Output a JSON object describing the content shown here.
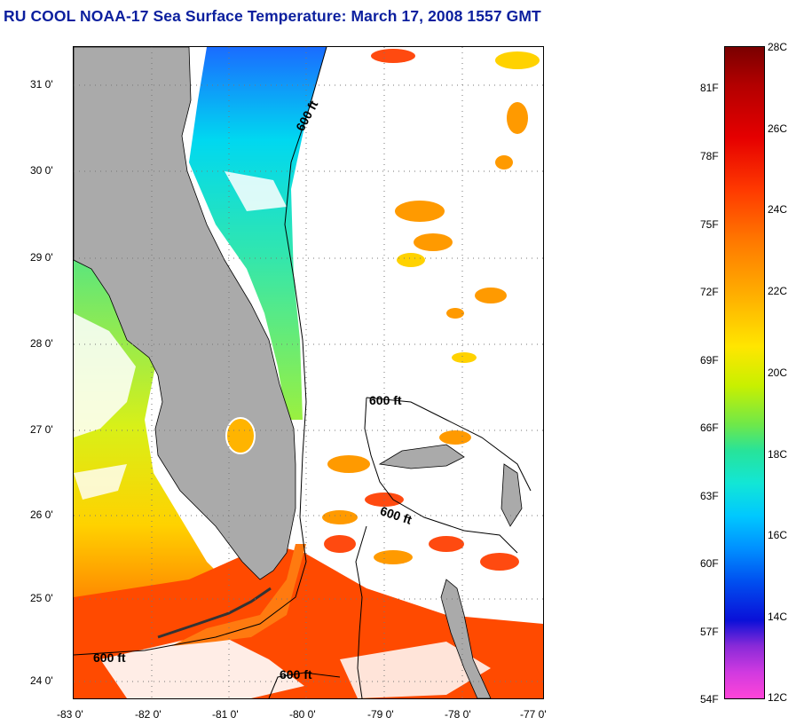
{
  "title": "RU COOL  NOAA-17  Sea Surface Temperature:  March 17, 2008 1557 GMT",
  "map": {
    "latitude_labels": [
      "31 0'",
      "30 0'",
      "29 0'",
      "28 0'",
      "27 0'",
      "26 0'",
      "25 0'",
      "24 0'"
    ],
    "longitude_labels": [
      "-83 0'",
      "-82 0'",
      "-81 0'",
      "-80 0'",
      "-79 0'",
      "-78 0'",
      "-77 0'"
    ],
    "contour_labels": [
      "600 ft",
      "600 ft",
      "600 ft",
      "600 ft",
      "600 ft"
    ],
    "colors": {
      "land": "#aaaaaa",
      "cloud": "#ffffff",
      "cold_water": "#00c8ff",
      "cool_water": "#55e880",
      "mid_water": "#e8f020",
      "warm_water": "#ff7a00",
      "hot_water": "#ff2a00"
    }
  },
  "colorbar": {
    "celsius_labels": [
      "28C",
      "26C",
      "24C",
      "22C",
      "20C",
      "18C",
      "16C",
      "14C",
      "12C"
    ],
    "fahrenheit_labels": [
      "81F",
      "78F",
      "75F",
      "72F",
      "69F",
      "66F",
      "63F",
      "60F",
      "57F",
      "54F"
    ]
  }
}
